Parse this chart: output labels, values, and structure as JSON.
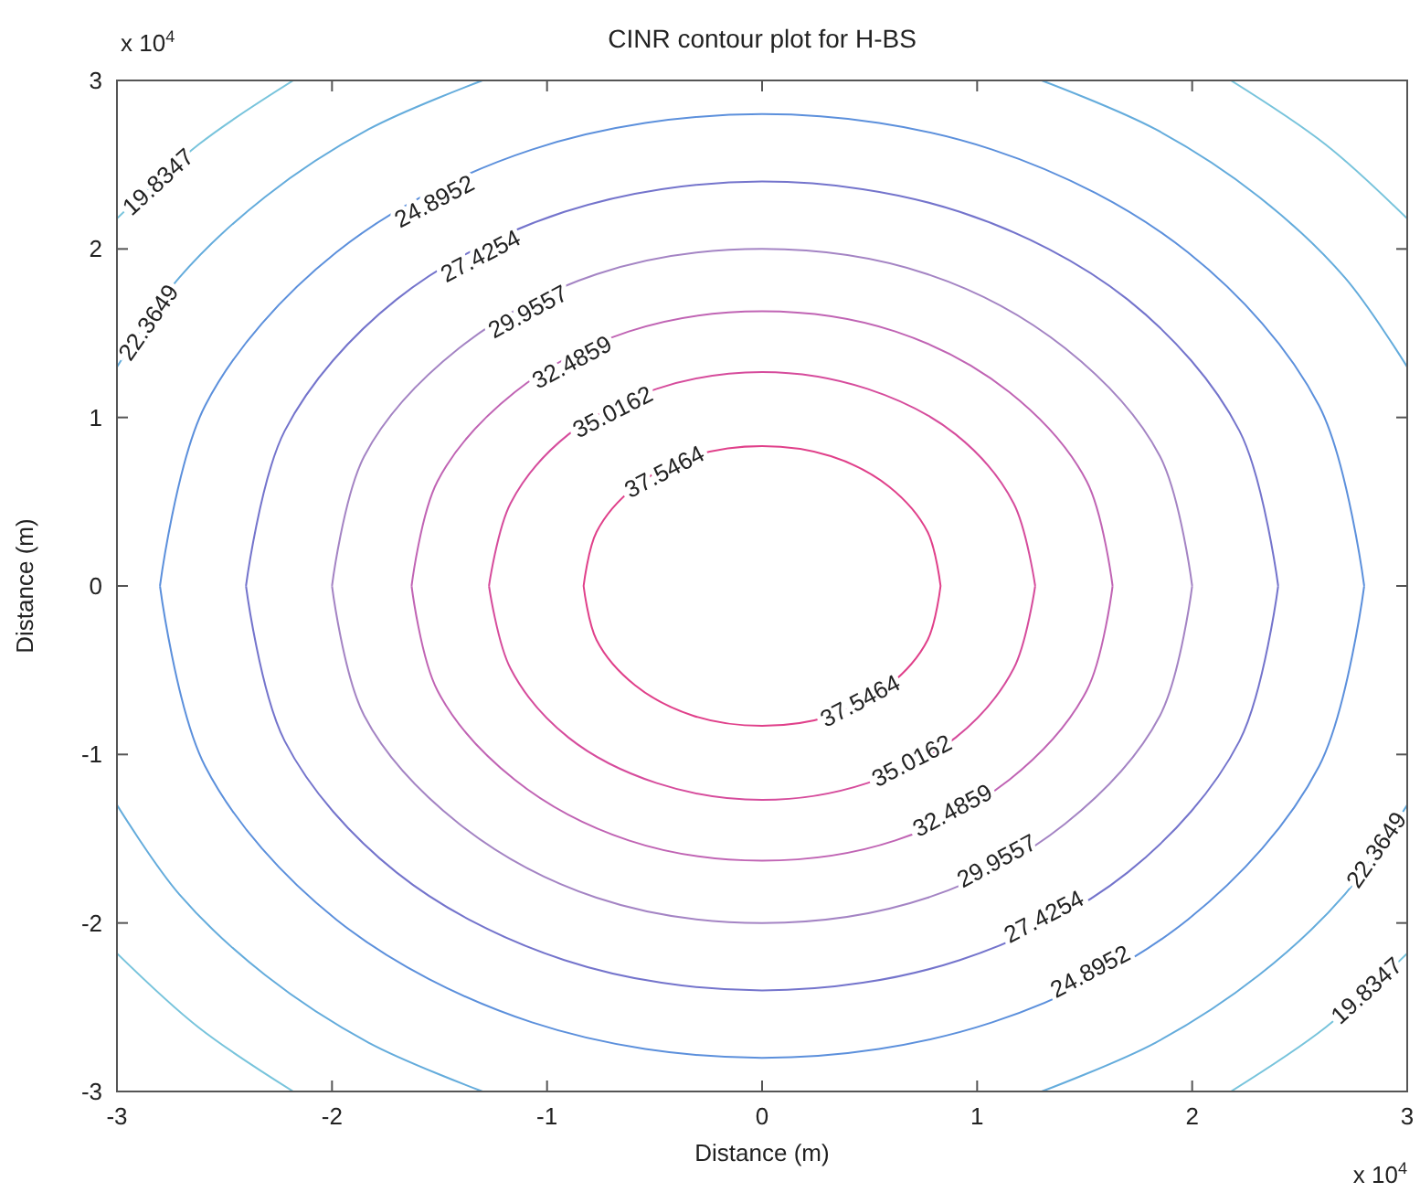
{
  "chart_data": {
    "type": "line",
    "title": "CINR contour plot for H-BS",
    "xlabel": "Distance (m)",
    "ylabel": "Distance (m)",
    "annotations": [
      "x 10$^{4}$",
      "x 10$^{4}$"
    ],
    "xlim": [
      -3,
      3
    ],
    "ylim": [
      -3,
      3
    ],
    "xticks": [
      -3,
      -2,
      -1,
      0,
      1,
      2,
      3
    ],
    "yticks": [
      -3,
      -2,
      -1,
      0,
      1,
      2,
      3
    ],
    "grid": false,
    "legend": false,
    "marker": "none",
    "line_style": "solid",
    "series": [
      {
        "name": "37.5464",
        "color": "#e0408a",
        "x": [
          0.83,
          0.77,
          0.59,
          0.32,
          0,
          -0.32,
          -0.59,
          -0.77,
          -0.83,
          null,
          -0.83,
          -0.77,
          -0.59,
          -0.32,
          0,
          0.32,
          0.59,
          0.77,
          0.83
        ],
        "values": [
          0,
          0.32,
          0.59,
          0.77,
          0.83,
          0.77,
          0.59,
          0.32,
          0,
          null,
          0,
          -0.32,
          -0.59,
          -0.77,
          -0.83,
          -0.77,
          -0.59,
          -0.32,
          0
        ]
      },
      {
        "name": "35.0162",
        "color": "#d64c9c",
        "x": [
          1.27,
          1.17,
          0.9,
          0.49,
          0,
          -0.49,
          -0.9,
          -1.17,
          -1.27,
          null,
          -1.27,
          -1.17,
          -0.9,
          -0.49,
          0,
          0.49,
          0.9,
          1.17,
          1.27
        ],
        "values": [
          0,
          0.49,
          0.9,
          1.17,
          1.27,
          1.17,
          0.9,
          0.49,
          0,
          null,
          0,
          -0.49,
          -0.9,
          -1.17,
          -1.27,
          -1.17,
          -0.9,
          -0.49,
          0
        ]
      },
      {
        "name": "32.4859",
        "color": "#c064b4",
        "x": [
          1.63,
          1.51,
          1.15,
          0.62,
          0,
          -0.62,
          -1.15,
          -1.51,
          -1.63,
          null,
          -1.63,
          -1.51,
          -1.15,
          -0.62,
          0,
          0.62,
          1.15,
          1.51,
          1.63
        ],
        "values": [
          0,
          0.62,
          1.15,
          1.51,
          1.63,
          1.51,
          1.15,
          0.62,
          0,
          null,
          0,
          -0.62,
          -1.15,
          -1.51,
          -1.63,
          -1.51,
          -1.15,
          -0.62,
          0
        ]
      },
      {
        "name": "29.9557",
        "color": "#a484c4",
        "x": [
          2,
          1.85,
          1.41,
          0.77,
          0,
          -0.77,
          -1.41,
          -1.85,
          -2,
          null,
          -2,
          -1.85,
          -1.41,
          -0.77,
          0,
          0.77,
          1.41,
          1.85,
          2
        ],
        "values": [
          0,
          0.77,
          1.41,
          1.85,
          2,
          1.85,
          1.41,
          0.77,
          0,
          null,
          0,
          -0.77,
          -1.41,
          -1.85,
          -2,
          -1.85,
          -1.41,
          -0.77,
          0
        ]
      },
      {
        "name": "27.4254",
        "color": "#7474cc",
        "x": [
          2.4,
          2.22,
          1.7,
          0.92,
          0,
          -0.92,
          -1.7,
          -2.22,
          -2.4,
          null,
          -2.4,
          -2.22,
          -1.7,
          -0.92,
          0,
          0.92,
          1.7,
          2.22,
          2.4
        ],
        "values": [
          0,
          0.92,
          1.7,
          2.22,
          2.4,
          2.22,
          1.7,
          0.92,
          0,
          null,
          0,
          -0.92,
          -1.7,
          -2.22,
          -2.4,
          -2.22,
          -1.7,
          -0.92,
          0
        ]
      },
      {
        "name": "24.8952",
        "color": "#5c90dc",
        "x": [
          2.8,
          2.59,
          1.98,
          1.07,
          0,
          -1.07,
          -1.98,
          -2.59,
          -2.8,
          null,
          -2.8,
          -2.59,
          -1.98,
          -1.07,
          0,
          1.07,
          1.98,
          2.59,
          2.8
        ],
        "values": [
          0,
          1.07,
          1.98,
          2.59,
          2.8,
          2.59,
          1.98,
          1.07,
          0,
          null,
          0,
          -1.07,
          -1.98,
          -2.59,
          -2.8,
          -2.59,
          -1.98,
          -1.07,
          0
        ]
      },
      {
        "name": "22.3649",
        "color": "#64acdc",
        "x": [
          1.3,
          1.83,
          2.31,
          2.71,
          3,
          null,
          3,
          2.71,
          2.31,
          1.83,
          1.3,
          null,
          -1.3,
          -1.83,
          -2.31,
          -2.71,
          -3,
          null,
          -3,
          -2.71,
          -2.31,
          -1.83,
          -1.3
        ],
        "values": [
          3,
          2.71,
          2.31,
          1.83,
          1.3,
          null,
          -1.3,
          -1.83,
          -2.31,
          -2.71,
          -3,
          null,
          -3,
          -2.71,
          -2.31,
          -1.83,
          -1.3,
          null,
          1.3,
          1.83,
          2.31,
          2.71,
          3
        ]
      },
      {
        "name": "19.8347",
        "color": "#78c4dc",
        "x": [
          2.18,
          2.62,
          3,
          null,
          3,
          2.62,
          2.18,
          null,
          -2.18,
          -2.62,
          -3,
          null,
          -3,
          -2.62,
          -2.18
        ],
        "values": [
          3,
          2.62,
          2.18,
          null,
          -2.18,
          -2.62,
          -3,
          null,
          -3,
          -2.62,
          -2.18,
          null,
          2.18,
          2.62,
          3
        ]
      }
    ]
  }
}
